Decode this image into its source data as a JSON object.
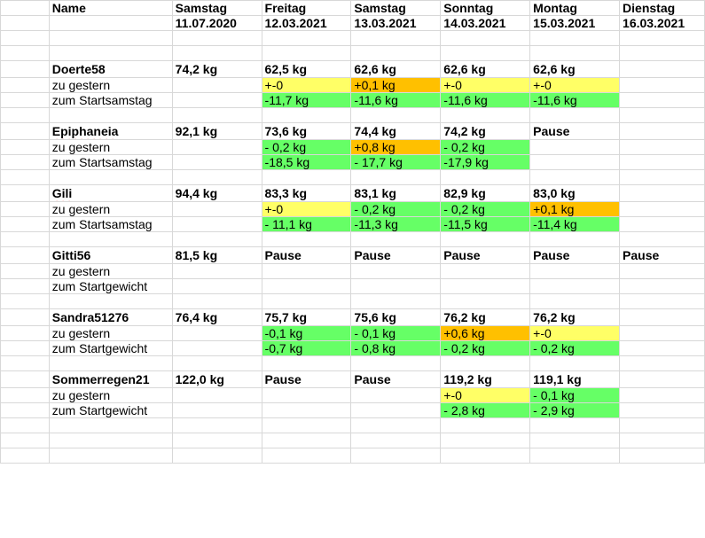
{
  "header": {
    "name_label": "Name",
    "days": [
      "Samstag",
      "Freitag",
      "Samstag",
      "Sonntag",
      "Montag",
      "Dienstag"
    ],
    "dates": [
      "11.07.2020",
      "12.03.2021",
      "13.03.2021",
      "14.03.2021",
      "15.03.2021",
      "16.03.2021"
    ]
  },
  "colors": {
    "yellow": "#ffff66",
    "orange": "#ffc000",
    "green": "#66ff66"
  },
  "people": [
    {
      "name": "Doerte58",
      "weights": [
        "74,2 kg",
        "62,5 kg",
        "62,6 kg",
        "62,6 kg",
        "62,6 kg",
        ""
      ],
      "row2_label": "zu gestern",
      "row2": [
        {
          "v": "",
          "c": ""
        },
        {
          "v": "+-0",
          "c": "yellow"
        },
        {
          "v": "+0,1 kg",
          "c": "orange"
        },
        {
          "v": "+-0",
          "c": "yellow"
        },
        {
          "v": "+-0",
          "c": "yellow"
        },
        {
          "v": "",
          "c": ""
        }
      ],
      "row3_label": "zum Startsamstag",
      "row3": [
        {
          "v": "",
          "c": ""
        },
        {
          "v": "-11,7 kg",
          "c": "green"
        },
        {
          "v": "-11,6 kg",
          "c": "green"
        },
        {
          "v": "-11,6 kg",
          "c": "green"
        },
        {
          "v": "-11,6 kg",
          "c": "green"
        },
        {
          "v": "",
          "c": ""
        }
      ]
    },
    {
      "name": "Epiphaneia",
      "weights": [
        "92,1 kg",
        "73,6 kg",
        "74,4 kg",
        "74,2 kg",
        "Pause",
        ""
      ],
      "row2_label": "zu gestern",
      "row2": [
        {
          "v": "",
          "c": ""
        },
        {
          "v": "- 0,2 kg",
          "c": "green"
        },
        {
          "v": "+0,8 kg",
          "c": "orange"
        },
        {
          "v": "- 0,2 kg",
          "c": "green"
        },
        {
          "v": "",
          "c": ""
        },
        {
          "v": "",
          "c": ""
        }
      ],
      "row3_label": "zum Startsamstag",
      "row3": [
        {
          "v": "",
          "c": ""
        },
        {
          "v": "-18,5 kg",
          "c": "green"
        },
        {
          "v": "- 17,7 kg",
          "c": "green"
        },
        {
          "v": "-17,9 kg",
          "c": "green"
        },
        {
          "v": "",
          "c": ""
        },
        {
          "v": "",
          "c": ""
        }
      ]
    },
    {
      "name": "Gili",
      "weights": [
        "94,4 kg",
        "83,3 kg",
        "83,1 kg",
        "82,9 kg",
        "83,0 kg",
        ""
      ],
      "row2_label": "zu gestern",
      "row2": [
        {
          "v": "",
          "c": ""
        },
        {
          "v": "+-0",
          "c": "yellow"
        },
        {
          "v": "- 0,2 kg",
          "c": "green"
        },
        {
          "v": "- 0,2 kg",
          "c": "green"
        },
        {
          "v": "+0,1 kg",
          "c": "orange"
        },
        {
          "v": "",
          "c": ""
        }
      ],
      "row3_label": "zum Startsamstag",
      "row3": [
        {
          "v": "",
          "c": ""
        },
        {
          "v": "- 11,1 kg",
          "c": "green"
        },
        {
          "v": "-11,3 kg",
          "c": "green"
        },
        {
          "v": "-11,5 kg",
          "c": "green"
        },
        {
          "v": "-11,4 kg",
          "c": "green"
        },
        {
          "v": "",
          "c": ""
        }
      ]
    },
    {
      "name": "Gitti56",
      "weights": [
        "81,5 kg",
        "Pause",
        "Pause",
        "Pause",
        "Pause",
        "Pause"
      ],
      "row2_label": "zu gestern",
      "row2": [
        {
          "v": "",
          "c": ""
        },
        {
          "v": "",
          "c": ""
        },
        {
          "v": "",
          "c": ""
        },
        {
          "v": "",
          "c": ""
        },
        {
          "v": "",
          "c": ""
        },
        {
          "v": "",
          "c": ""
        }
      ],
      "row3_label": "zum Startgewicht",
      "row3": [
        {
          "v": "",
          "c": ""
        },
        {
          "v": "",
          "c": ""
        },
        {
          "v": "",
          "c": ""
        },
        {
          "v": "",
          "c": ""
        },
        {
          "v": "",
          "c": ""
        },
        {
          "v": "",
          "c": ""
        }
      ]
    },
    {
      "name": "Sandra51276",
      "weights": [
        "76,4 kg",
        "75,7 kg",
        "75,6 kg",
        "76,2 kg",
        "76,2 kg",
        ""
      ],
      "row2_label": "zu gestern",
      "row2": [
        {
          "v": "",
          "c": ""
        },
        {
          "v": "-0,1 kg",
          "c": "green"
        },
        {
          "v": "- 0,1 kg",
          "c": "green"
        },
        {
          "v": "+0,6 kg",
          "c": "orange"
        },
        {
          "v": "+-0",
          "c": "yellow"
        },
        {
          "v": "",
          "c": ""
        }
      ],
      "row3_label": "zum Startgewicht",
      "row3": [
        {
          "v": "",
          "c": ""
        },
        {
          "v": "-0,7 kg",
          "c": "green"
        },
        {
          "v": "- 0,8 kg",
          "c": "green"
        },
        {
          "v": "- 0,2 kg",
          "c": "green"
        },
        {
          "v": "- 0,2 kg",
          "c": "green"
        },
        {
          "v": "",
          "c": ""
        }
      ]
    },
    {
      "name": "Sommerregen21",
      "weights": [
        "122,0 kg",
        "Pause",
        "Pause",
        "119,2 kg",
        "119,1 kg",
        ""
      ],
      "row2_label": "zu gestern",
      "row2": [
        {
          "v": "",
          "c": ""
        },
        {
          "v": "",
          "c": ""
        },
        {
          "v": "",
          "c": ""
        },
        {
          "v": "+-0",
          "c": "yellow"
        },
        {
          "v": "- 0,1 kg",
          "c": "green"
        },
        {
          "v": "",
          "c": ""
        }
      ],
      "row3_label": "zum Startgewicht",
      "row3": [
        {
          "v": "",
          "c": ""
        },
        {
          "v": "",
          "c": ""
        },
        {
          "v": "",
          "c": ""
        },
        {
          "v": "- 2,8 kg",
          "c": "green"
        },
        {
          "v": "- 2,9 kg",
          "c": "green"
        },
        {
          "v": "",
          "c": ""
        }
      ]
    }
  ]
}
